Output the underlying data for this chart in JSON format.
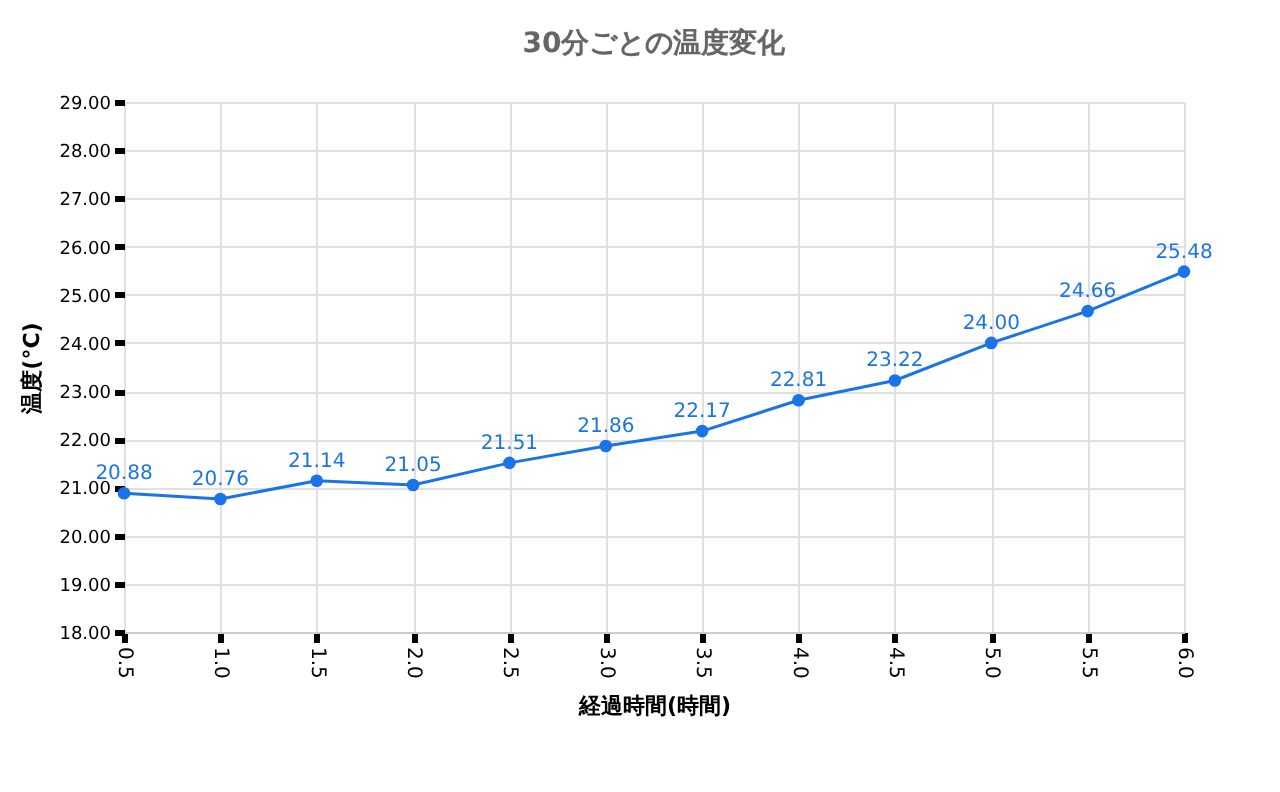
{
  "chart_data": {
    "type": "line",
    "title": "30分ごとの温度変化",
    "xlabel": "経過時間(時間)",
    "ylabel": "温度(°C)",
    "x": [
      0.5,
      1.0,
      1.5,
      2.0,
      2.5,
      3.0,
      3.5,
      4.0,
      4.5,
      5.0,
      5.5,
      6.0
    ],
    "series": [
      {
        "color": "#1a73e8",
        "values": [
          20.88,
          20.76,
          21.14,
          21.05,
          21.51,
          21.86,
          22.17,
          22.81,
          23.22,
          24.0,
          24.66,
          25.48
        ]
      }
    ],
    "value_labels": [
      "20.88",
      "20.76",
      "21.14",
      "21.05",
      "21.51",
      "21.86",
      "22.17",
      "22.81",
      "23.22",
      "24.00",
      "24.66",
      "25.48"
    ],
    "xlim": [
      0.5,
      6.0
    ],
    "xticks": [
      {
        "value": 0.5,
        "label": "0.5"
      },
      {
        "value": 1,
        "label": "1.0"
      },
      {
        "value": 1.5,
        "label": "1.5"
      },
      {
        "value": 2,
        "label": "2.0"
      },
      {
        "value": 2.5,
        "label": "2.5"
      },
      {
        "value": 3,
        "label": "3.0"
      },
      {
        "value": 3.5,
        "label": "3.5"
      },
      {
        "value": 4,
        "label": "4.0"
      },
      {
        "value": 4.5,
        "label": "4.5"
      },
      {
        "value": 5,
        "label": "5.0"
      },
      {
        "value": 5.5,
        "label": "5.5"
      },
      {
        "value": 6,
        "label": "6.0"
      }
    ],
    "ylim": [
      18,
      29
    ],
    "yticks": [
      {
        "value": 18,
        "label": "18.00"
      },
      {
        "value": 19,
        "label": "19.00"
      },
      {
        "value": 20,
        "label": "20.00"
      },
      {
        "value": 21,
        "label": "21.00"
      },
      {
        "value": 22,
        "label": "22.00"
      },
      {
        "value": 23,
        "label": "23.00"
      },
      {
        "value": 24,
        "label": "24.00"
      },
      {
        "value": 25,
        "label": "25.00"
      },
      {
        "value": 26,
        "label": "26.00"
      },
      {
        "value": 27,
        "label": "27.00"
      },
      {
        "value": 28,
        "label": "28.00"
      },
      {
        "value": 29,
        "label": "29.00"
      }
    ],
    "grid": true,
    "marker": "circle",
    "line_style": "solid"
  }
}
